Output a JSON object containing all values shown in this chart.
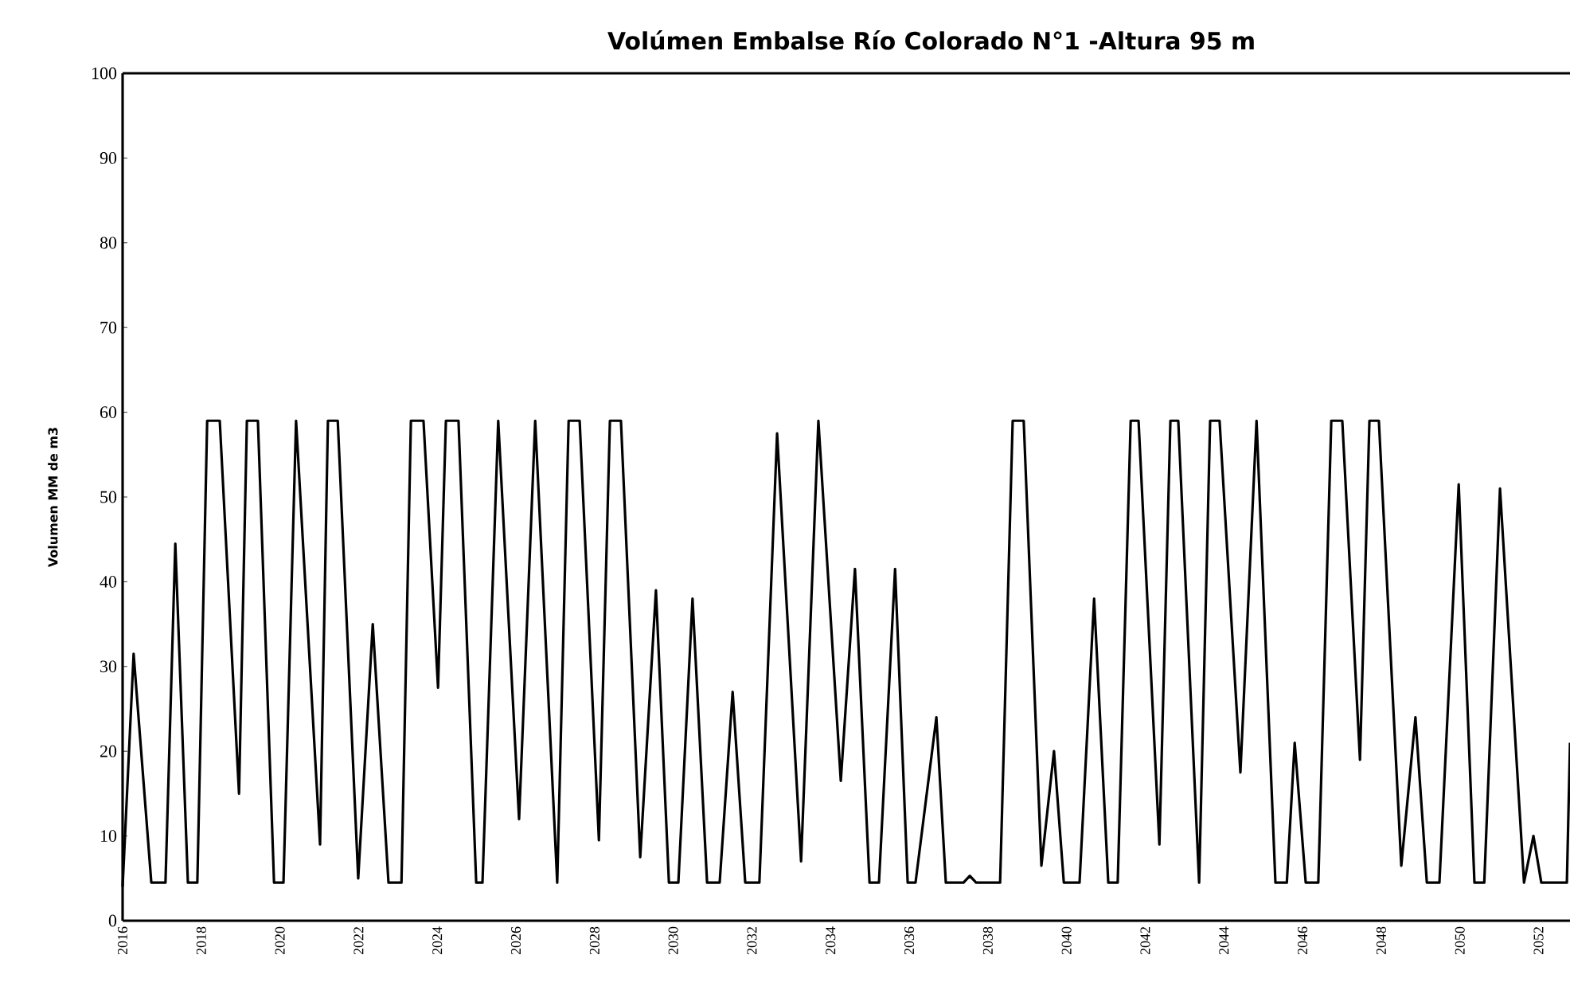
{
  "chart_data": {
    "type": "line",
    "title": "Volúmen Embalse Río Colorado  N°1 -Altura 95 m",
    "ylabel": "Volumen MM de m3",
    "xlim": [
      2016,
      2052.8
    ],
    "xticks": [
      2016,
      2018,
      2020,
      2022,
      2024,
      2026,
      2028,
      2030,
      2032,
      2034,
      2036,
      2038,
      2040,
      2042,
      2044,
      2046,
      2048,
      2050,
      2052
    ],
    "ylim": [
      0,
      100
    ],
    "yticks": [
      0,
      10,
      20,
      30,
      40,
      50,
      60,
      70,
      80,
      90,
      100
    ],
    "marker": "none",
    "line_style": "solid",
    "series": [
      {
        "color": "#000000",
        "x": [
          2016.0,
          2016.28,
          2016.73,
          2017.09,
          2017.34,
          2017.66,
          2017.9,
          2018.15,
          2018.47,
          2018.96,
          2019.16,
          2019.44,
          2019.85,
          2020.09,
          2020.41,
          2021.02,
          2021.22,
          2021.47,
          2021.99,
          2022.36,
          2022.76,
          2023.09,
          2023.33,
          2023.65,
          2024.02,
          2024.22,
          2024.54,
          2024.99,
          2025.15,
          2025.55,
          2026.08,
          2026.49,
          2027.05,
          2027.34,
          2027.62,
          2028.11,
          2028.39,
          2028.67,
          2029.16,
          2029.56,
          2029.89,
          2030.13,
          2030.49,
          2030.86,
          2031.18,
          2031.51,
          2031.83,
          2032.19,
          2032.64,
          2033.25,
          2033.69,
          2034.26,
          2034.62,
          2034.99,
          2035.23,
          2035.64,
          2035.96,
          2036.16,
          2036.69,
          2036.93,
          2037.38,
          2037.54,
          2037.7,
          2038.31,
          2038.63,
          2038.91,
          2039.36,
          2039.68,
          2039.93,
          2040.33,
          2040.7,
          2041.06,
          2041.3,
          2041.63,
          2041.83,
          2042.36,
          2042.64,
          2042.84,
          2043.37,
          2043.65,
          2043.89,
          2044.42,
          2044.83,
          2045.31,
          2045.6,
          2045.8,
          2046.08,
          2046.4,
          2046.73,
          2047.01,
          2047.46,
          2047.7,
          2047.94,
          2048.51,
          2048.87,
          2049.16,
          2049.48,
          2049.97,
          2050.37,
          2050.62,
          2051.02,
          2051.63,
          2051.87,
          2052.07,
          2052.72,
          2052.8
        ],
        "values": [
          4,
          31.5,
          4.5,
          4.5,
          44.5,
          4.5,
          4.5,
          59,
          59,
          15,
          59,
          59,
          4.5,
          4.5,
          59,
          9,
          59,
          59,
          5,
          35,
          4.5,
          4.5,
          59,
          59,
          27.5,
          59,
          59,
          4.5,
          4.5,
          59,
          12,
          59,
          4.5,
          59,
          59,
          9.5,
          59,
          59,
          7.5,
          39,
          4.5,
          4.5,
          38,
          4.5,
          4.5,
          27,
          4.5,
          4.5,
          57.5,
          7,
          59,
          16.5,
          41.5,
          4.5,
          4.5,
          41.5,
          4.5,
          4.5,
          24,
          4.5,
          4.5,
          5.3,
          4.5,
          4.5,
          59,
          59,
          6.5,
          20,
          4.5,
          4.5,
          38,
          4.5,
          4.5,
          59,
          59,
          9,
          59,
          59,
          4.5,
          59,
          59,
          17.5,
          59,
          4.5,
          4.5,
          21,
          4.5,
          4.5,
          59,
          59,
          19,
          59,
          59,
          6.5,
          24,
          4.5,
          4.5,
          51.5,
          4.5,
          4.5,
          51,
          4.5,
          10,
          4.5,
          4.5,
          21
        ]
      }
    ]
  }
}
